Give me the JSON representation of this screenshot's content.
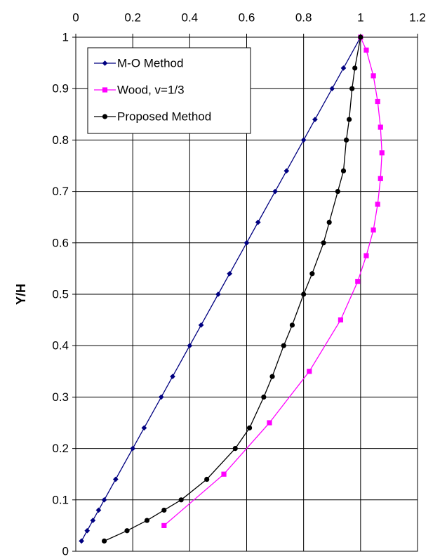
{
  "chart_data": {
    "type": "line",
    "title": "",
    "xlabel": "",
    "ylabel": "Y/H",
    "xlim": [
      0,
      1.2
    ],
    "ylim": [
      0,
      1
    ],
    "x_ticks": [
      "0",
      "0.2",
      "0.4",
      "0.6",
      "0.8",
      "1",
      "1.2"
    ],
    "y_ticks": [
      "0",
      "0.1",
      "0.2",
      "0.3",
      "0.4",
      "0.5",
      "0.6",
      "0.7",
      "0.8",
      "0.9",
      "1"
    ],
    "x_axis_position": "top",
    "grid": true,
    "legend": "top-left",
    "series": [
      {
        "name": "M-O Method",
        "color": "#000080",
        "marker": "diamond",
        "points": [
          [
            0.02,
            0.02
          ],
          [
            0.04,
            0.04
          ],
          [
            0.06,
            0.06
          ],
          [
            0.08,
            0.08
          ],
          [
            0.1,
            0.1
          ],
          [
            0.14,
            0.14
          ],
          [
            0.2,
            0.2
          ],
          [
            0.24,
            0.24
          ],
          [
            0.3,
            0.3
          ],
          [
            0.34,
            0.34
          ],
          [
            0.4,
            0.4
          ],
          [
            0.44,
            0.44
          ],
          [
            0.5,
            0.5
          ],
          [
            0.54,
            0.54
          ],
          [
            0.6,
            0.6
          ],
          [
            0.64,
            0.64
          ],
          [
            0.7,
            0.7
          ],
          [
            0.74,
            0.74
          ],
          [
            0.8,
            0.8
          ],
          [
            0.84,
            0.84
          ],
          [
            0.9,
            0.9
          ],
          [
            0.94,
            0.94
          ],
          [
            1.0,
            1.0
          ]
        ]
      },
      {
        "name": "Wood, v=1/3",
        "color": "#ff00ff",
        "marker": "square",
        "points": [
          [
            0.31,
            0.05
          ],
          [
            0.52,
            0.15
          ],
          [
            0.68,
            0.25
          ],
          [
            0.82,
            0.35
          ],
          [
            0.93,
            0.45
          ],
          [
            0.99,
            0.525
          ],
          [
            1.02,
            0.575
          ],
          [
            1.045,
            0.625
          ],
          [
            1.06,
            0.675
          ],
          [
            1.07,
            0.725
          ],
          [
            1.075,
            0.775
          ],
          [
            1.07,
            0.825
          ],
          [
            1.06,
            0.875
          ],
          [
            1.045,
            0.925
          ],
          [
            1.02,
            0.975
          ],
          [
            1.0,
            1.0
          ]
        ]
      },
      {
        "name": "Proposed Method",
        "color": "#000000",
        "marker": "circle",
        "points": [
          [
            0.1,
            0.02
          ],
          [
            0.18,
            0.04
          ],
          [
            0.25,
            0.06
          ],
          [
            0.31,
            0.08
          ],
          [
            0.37,
            0.1
          ],
          [
            0.46,
            0.14
          ],
          [
            0.56,
            0.2
          ],
          [
            0.61,
            0.24
          ],
          [
            0.66,
            0.3
          ],
          [
            0.69,
            0.34
          ],
          [
            0.73,
            0.4
          ],
          [
            0.76,
            0.44
          ],
          [
            0.8,
            0.5
          ],
          [
            0.83,
            0.54
          ],
          [
            0.87,
            0.6
          ],
          [
            0.89,
            0.64
          ],
          [
            0.92,
            0.7
          ],
          [
            0.94,
            0.74
          ],
          [
            0.95,
            0.8
          ],
          [
            0.96,
            0.84
          ],
          [
            0.97,
            0.9
          ],
          [
            0.98,
            0.94
          ],
          [
            1.0,
            1.0
          ]
        ]
      }
    ]
  }
}
